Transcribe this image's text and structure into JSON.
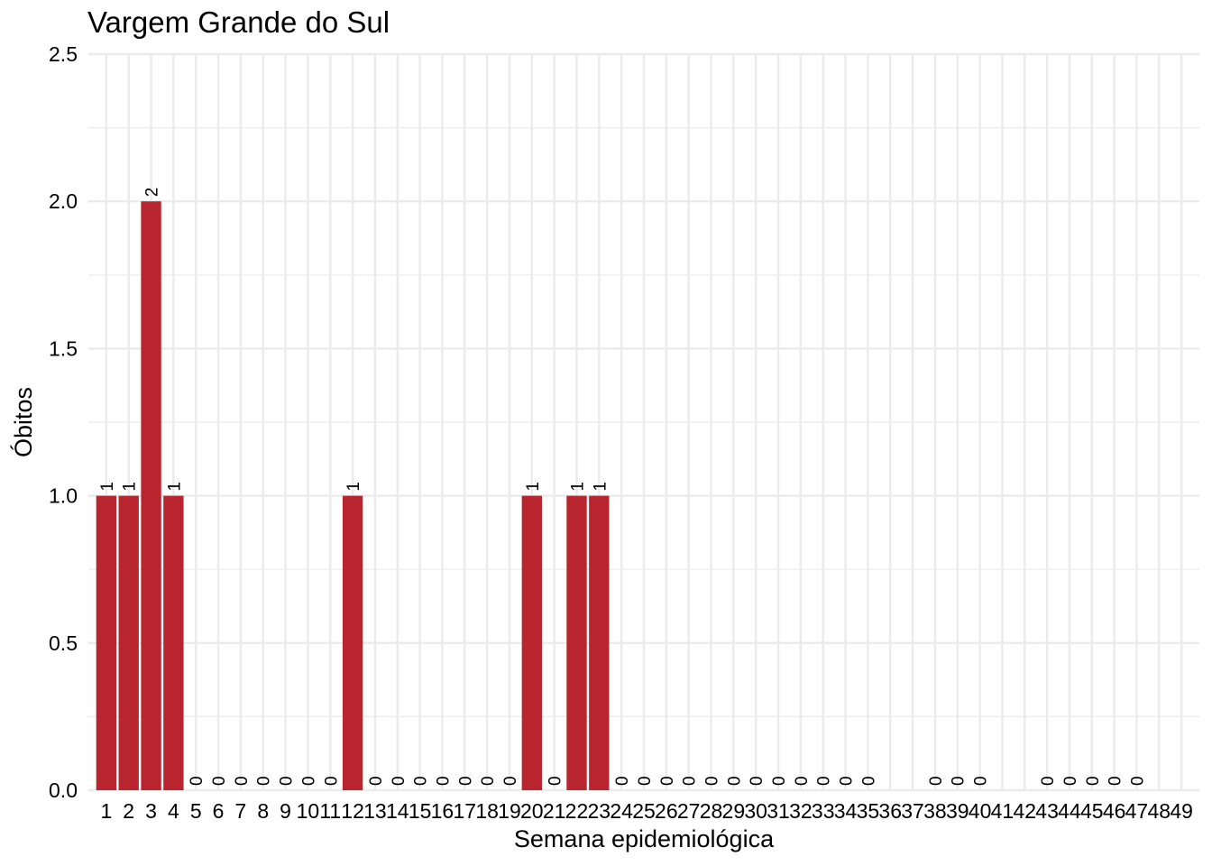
{
  "chart_data": {
    "type": "bar",
    "title": "Vargem Grande do Sul",
    "xlabel": "Semana epidemiológica",
    "ylabel": "Óbitos",
    "ylim": [
      0,
      2.5
    ],
    "y_ticks": [
      "0.0",
      "0.5",
      "1.0",
      "1.5",
      "2.0",
      "2.5"
    ],
    "grid": true,
    "bar_color": "#B8252E",
    "categories": [
      "1",
      "2",
      "3",
      "4",
      "5",
      "6",
      "7",
      "8",
      "9",
      "10",
      "11",
      "12",
      "13",
      "14",
      "15",
      "16",
      "17",
      "18",
      "19",
      "20",
      "21",
      "22",
      "23",
      "24",
      "25",
      "26",
      "27",
      "28",
      "29",
      "30",
      "31",
      "32",
      "33",
      "34",
      "35",
      "36",
      "37",
      "38",
      "39",
      "40",
      "41",
      "42",
      "43",
      "44",
      "45",
      "46",
      "47",
      "48",
      "49"
    ],
    "values": [
      1,
      1,
      2,
      1,
      0,
      0,
      0,
      0,
      0,
      0,
      0,
      1,
      0,
      0,
      0,
      0,
      0,
      0,
      0,
      1,
      0,
      1,
      1,
      0,
      0,
      0,
      0,
      0,
      0,
      0,
      0,
      0,
      0,
      0,
      0,
      null,
      null,
      0,
      0,
      0,
      null,
      null,
      0,
      0,
      0,
      0,
      0,
      null,
      null
    ],
    "data_labels": [
      "1",
      "1",
      "2",
      "1",
      "0",
      "0",
      "0",
      "0",
      "0",
      "0",
      "0",
      "1",
      "0",
      "0",
      "0",
      "0",
      "0",
      "0",
      "0",
      "1",
      "0",
      "1",
      "1",
      "0",
      "0",
      "0",
      "0",
      "0",
      "0",
      "0",
      "0",
      "0",
      "0",
      "0",
      "0",
      "",
      "",
      "0",
      "0",
      "0",
      "",
      "",
      "0",
      "0",
      "0",
      "0",
      "0",
      "",
      ""
    ]
  }
}
